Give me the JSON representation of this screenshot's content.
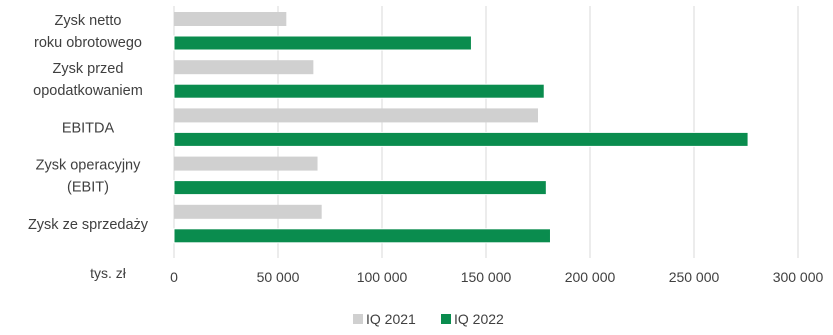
{
  "chart_data": {
    "type": "bar",
    "orientation": "horizontal",
    "unit_label": "tys. zł",
    "categories": [
      [
        "Zysk netto",
        "roku obrotowego"
      ],
      [
        "Zysk przed",
        "opodatkowaniem"
      ],
      [
        "EBITDA"
      ],
      [
        "Zysk operacyjny",
        "(EBIT)"
      ],
      [
        "Zysk ze sprzedaży"
      ]
    ],
    "series": [
      {
        "name": "IQ 2021",
        "color": "#d0d0d0",
        "values": [
          54000,
          67000,
          175000,
          69000,
          71000
        ]
      },
      {
        "name": "IQ 2022",
        "color": "#0a8c4e",
        "values": [
          143000,
          178000,
          276000,
          179000,
          181000
        ]
      }
    ],
    "xlim": [
      0,
      300000
    ],
    "xticks": [
      0,
      50000,
      100000,
      150000,
      200000,
      250000,
      300000
    ],
    "xtick_labels": [
      "0",
      "50 000",
      "100 000",
      "150 000",
      "200 000",
      "250 000",
      "300 000"
    ],
    "grid": "vertical",
    "legend_position": "bottom"
  }
}
